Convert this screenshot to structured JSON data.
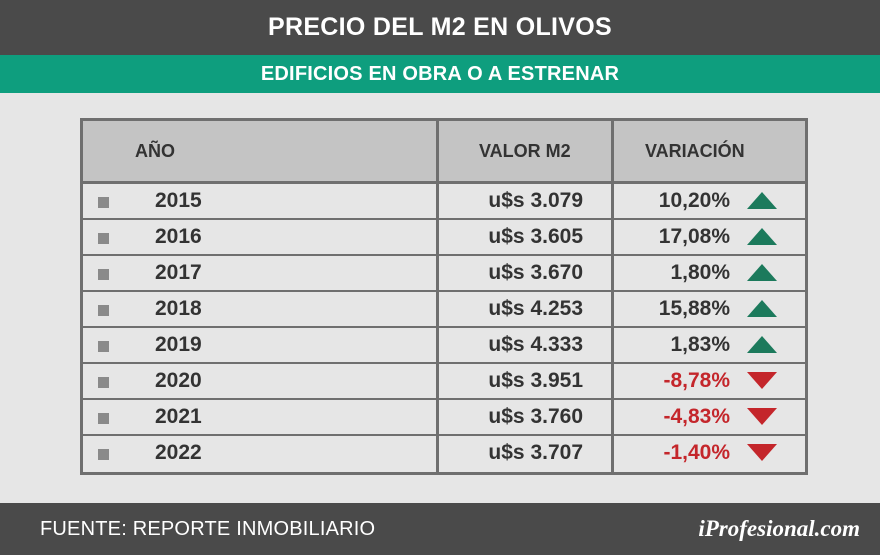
{
  "title": "PRECIO DEL M2 EN OLIVOS",
  "subtitle": "EDIFICIOS EN OBRA O A ESTRENAR",
  "source": "FUENTE: REPORTE INMOBILIARIO",
  "logo": "iProfesional.com",
  "colors": {
    "up": "#1c7a5c",
    "down": "#c4262b",
    "neutral_text": "#333333"
  },
  "chart_data": {
    "type": "table",
    "columns": [
      "AÑO",
      "VALOR M2",
      "VARIACIÓN"
    ],
    "rows": [
      {
        "year": "2015",
        "value": "u$s 3.079",
        "variation": "10,20%",
        "trend": "up"
      },
      {
        "year": "2016",
        "value": "u$s 3.605",
        "variation": "17,08%",
        "trend": "up"
      },
      {
        "year": "2017",
        "value": "u$s 3.670",
        "variation": "1,80%",
        "trend": "up"
      },
      {
        "year": "2018",
        "value": "u$s 4.253",
        "variation": "15,88%",
        "trend": "up"
      },
      {
        "year": "2019",
        "value": "u$s 4.333",
        "variation": "1,83%",
        "trend": "up"
      },
      {
        "year": "2020",
        "value": "u$s 3.951",
        "variation": "-8,78%",
        "trend": "down"
      },
      {
        "year": "2021",
        "value": "u$s 3.760",
        "variation": "-4,83%",
        "trend": "down"
      },
      {
        "year": "2022",
        "value": "u$s 3.707",
        "variation": "-1,40%",
        "trend": "down"
      }
    ]
  }
}
